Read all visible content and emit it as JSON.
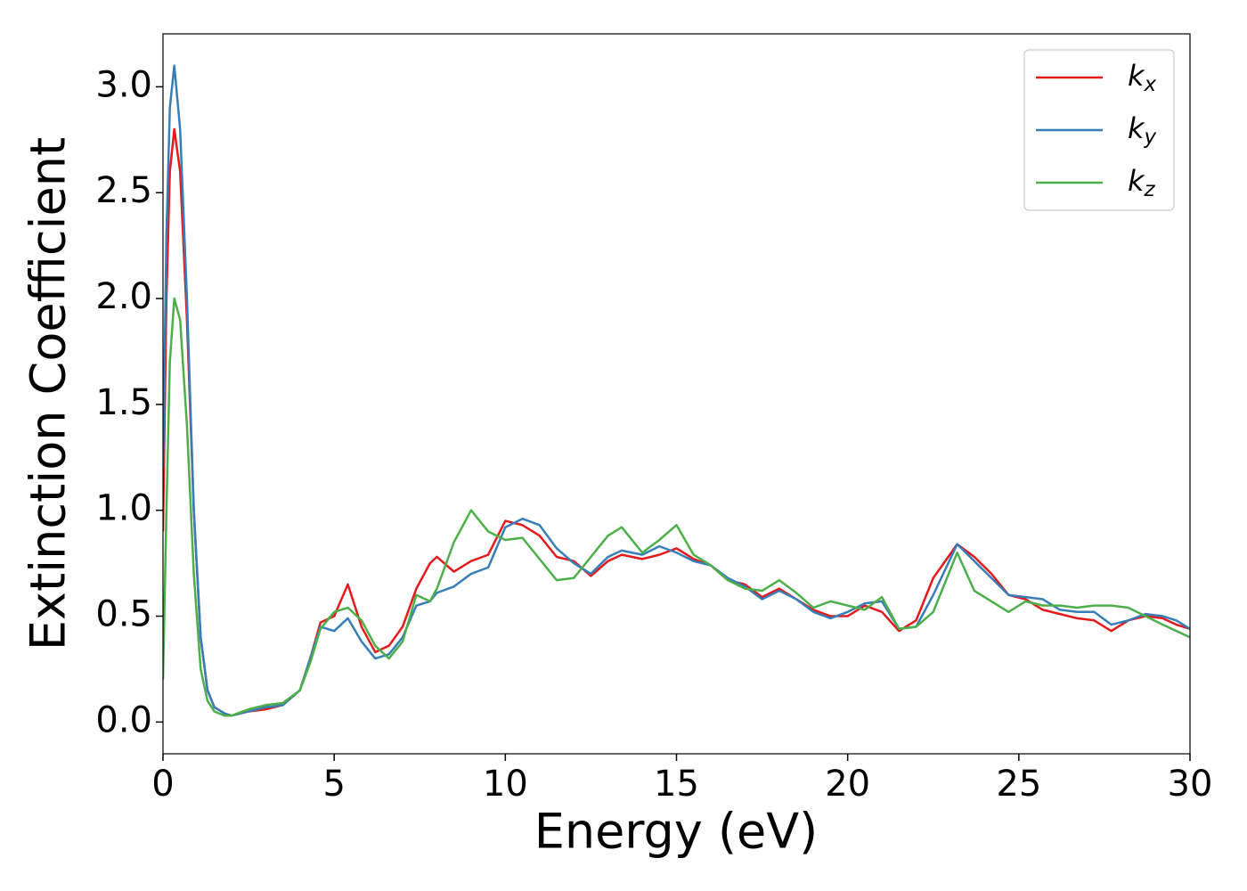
{
  "chart_data": {
    "type": "line",
    "xlabel": "Energy (eV)",
    "ylabel": "Extinction Coefficient",
    "x": [
      0,
      0.1,
      0.2,
      0.33,
      0.5,
      0.7,
      0.9,
      1.1,
      1.3,
      1.5,
      1.8,
      2.0,
      2.5,
      3.0,
      3.5,
      4.0,
      4.3,
      4.6,
      5.0,
      5.4,
      5.8,
      6.2,
      6.6,
      7.0,
      7.4,
      7.8,
      8.0,
      8.5,
      9.0,
      9.5,
      10.0,
      10.5,
      11.0,
      11.5,
      12.0,
      12.5,
      13.0,
      13.4,
      14.0,
      14.5,
      15.0,
      15.5,
      16.0,
      16.5,
      17.0,
      17.5,
      18.0,
      18.5,
      19.0,
      19.5,
      20.0,
      20.5,
      21.0,
      21.5,
      22.0,
      22.5,
      23.2,
      23.7,
      24.2,
      24.7,
      25.2,
      25.7,
      26.2,
      26.7,
      27.2,
      27.7,
      28.2,
      28.7,
      29.2,
      29.6,
      30.0
    ],
    "series": [
      {
        "name": "k_x",
        "color": "#e41a1c",
        "values": [
          0.9,
          2.0,
          2.6,
          2.8,
          2.6,
          1.9,
          1.0,
          0.4,
          0.15,
          0.07,
          0.04,
          0.03,
          0.05,
          0.06,
          0.08,
          0.15,
          0.3,
          0.47,
          0.5,
          0.65,
          0.45,
          0.33,
          0.36,
          0.45,
          0.63,
          0.75,
          0.78,
          0.71,
          0.76,
          0.79,
          0.95,
          0.93,
          0.88,
          0.78,
          0.76,
          0.69,
          0.76,
          0.79,
          0.77,
          0.79,
          0.82,
          0.77,
          0.74,
          0.67,
          0.65,
          0.59,
          0.63,
          0.58,
          0.53,
          0.5,
          0.5,
          0.55,
          0.52,
          0.43,
          0.48,
          0.68,
          0.84,
          0.78,
          0.7,
          0.6,
          0.58,
          0.53,
          0.51,
          0.49,
          0.48,
          0.43,
          0.48,
          0.5,
          0.49,
          0.46,
          0.44
        ]
      },
      {
        "name": "k_y",
        "color": "#377eb8",
        "values": [
          1.2,
          2.3,
          2.9,
          3.1,
          2.8,
          2.0,
          1.0,
          0.4,
          0.15,
          0.07,
          0.04,
          0.03,
          0.05,
          0.07,
          0.08,
          0.15,
          0.3,
          0.45,
          0.43,
          0.49,
          0.38,
          0.3,
          0.32,
          0.4,
          0.55,
          0.57,
          0.61,
          0.64,
          0.7,
          0.73,
          0.92,
          0.96,
          0.93,
          0.82,
          0.75,
          0.7,
          0.78,
          0.81,
          0.79,
          0.83,
          0.8,
          0.76,
          0.74,
          0.68,
          0.64,
          0.58,
          0.62,
          0.58,
          0.52,
          0.49,
          0.52,
          0.56,
          0.57,
          0.44,
          0.45,
          0.6,
          0.84,
          0.76,
          0.68,
          0.6,
          0.59,
          0.58,
          0.53,
          0.52,
          0.52,
          0.46,
          0.48,
          0.51,
          0.5,
          0.48,
          0.44
        ]
      },
      {
        "name": "k_z",
        "color": "#4daf4a",
        "values": [
          0.2,
          1.0,
          1.7,
          2.0,
          1.9,
          1.4,
          0.7,
          0.25,
          0.1,
          0.05,
          0.03,
          0.03,
          0.06,
          0.08,
          0.09,
          0.15,
          0.28,
          0.44,
          0.52,
          0.54,
          0.48,
          0.36,
          0.3,
          0.38,
          0.6,
          0.57,
          0.63,
          0.85,
          1.0,
          0.9,
          0.86,
          0.87,
          0.77,
          0.67,
          0.68,
          0.78,
          0.88,
          0.92,
          0.8,
          0.86,
          0.93,
          0.79,
          0.74,
          0.67,
          0.63,
          0.62,
          0.67,
          0.61,
          0.54,
          0.57,
          0.55,
          0.53,
          0.59,
          0.44,
          0.45,
          0.52,
          0.8,
          0.62,
          0.57,
          0.52,
          0.57,
          0.55,
          0.55,
          0.54,
          0.55,
          0.55,
          0.54,
          0.5,
          0.46,
          0.43,
          0.4
        ]
      }
    ],
    "xlim": [
      0,
      30
    ],
    "xticks": [
      0,
      5,
      10,
      15,
      20,
      25,
      30
    ],
    "ylim": [
      -0.15,
      3.25
    ],
    "yticks": [
      {
        "value": 0,
        "label": "0.0"
      },
      0.5,
      {
        "value": 1,
        "label": "1.0"
      },
      1.5,
      {
        "value": 2,
        "label": "2.0"
      },
      2.5,
      {
        "value": 3,
        "label": "3.0"
      }
    ],
    "legend": "upper right",
    "grid": false
  }
}
